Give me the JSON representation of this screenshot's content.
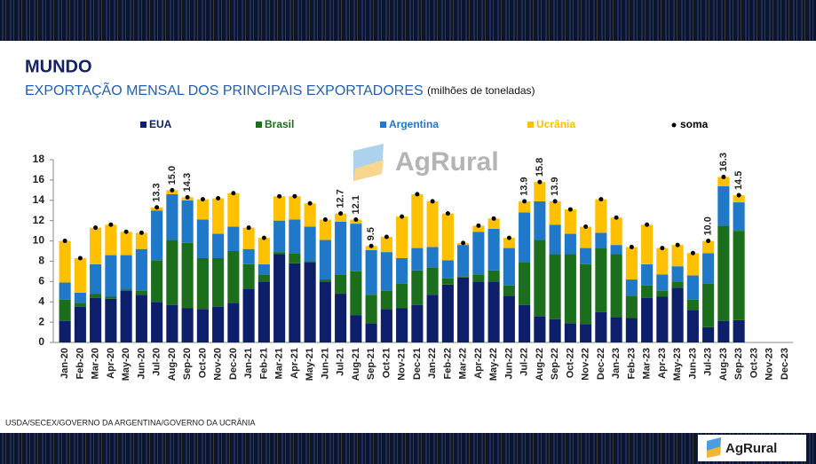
{
  "chart_data": {
    "type": "stacked_bar",
    "title": "MUNDO",
    "subtitle": "EXPORTAÇÃO MENSAL DOS PRINCIPAIS EXPORTADORES",
    "unit_note": "(milhões de toneladas)",
    "watermark": "AgRural",
    "logo": "AgRural",
    "source": "USDA/SECEX/GOVERNO DA ARGENTINA/GOVERNO DA UCRÂNIA",
    "categories": [
      "Jan-20",
      "Feb-20",
      "Mar-20",
      "Apr-20",
      "May-20",
      "Jun-20",
      "Jul-20",
      "Aug-20",
      "Sep-20",
      "Oct-20",
      "Nov-20",
      "Dec-20",
      "Jan-21",
      "Feb-21",
      "Mar-21",
      "Apr-21",
      "May-21",
      "Jun-21",
      "Jul-21",
      "Aug-21",
      "Sep-21",
      "Oct-21",
      "Nov-21",
      "Dec-21",
      "Jan-22",
      "Feb-22",
      "Mar-22",
      "Apr-22",
      "May-22",
      "Jun-22",
      "Jul-22",
      "Aug-22",
      "Sep-22",
      "Oct-22",
      "Nov-22",
      "Dec-22",
      "Jan-23",
      "Feb-23",
      "Mar-23",
      "Apr-23",
      "May-23",
      "Jun-23",
      "Jul-23",
      "Aug-23",
      "Sep-23",
      "Oct-23",
      "Nov-23",
      "Dec-23"
    ],
    "series": [
      {
        "name": "EUA",
        "color": "#0d1f6b",
        "values": [
          2.1,
          3.5,
          4.4,
          4.3,
          5.1,
          4.7,
          4.0,
          3.7,
          3.4,
          3.3,
          3.5,
          3.9,
          5.3,
          6.0,
          8.7,
          7.8,
          7.9,
          6.0,
          4.8,
          2.7,
          1.9,
          3.3,
          3.4,
          3.7,
          4.7,
          5.7,
          6.4,
          6.0,
          6.0,
          4.6,
          3.7,
          2.6,
          2.3,
          1.9,
          1.8,
          3.0,
          2.5,
          2.4,
          4.4,
          4.5,
          5.4,
          3.2,
          1.5,
          2.1,
          2.2,
          null,
          null,
          null
        ]
      },
      {
        "name": "Brasil",
        "color": "#1b6e1b",
        "values": [
          2.1,
          0.4,
          0.4,
          0.2,
          0.1,
          0.4,
          4.1,
          6.4,
          6.4,
          5.0,
          4.8,
          5.1,
          2.4,
          0.7,
          0.2,
          1.0,
          0.1,
          0.2,
          1.9,
          4.3,
          2.8,
          1.8,
          2.4,
          3.4,
          2.7,
          0.6,
          0.1,
          0.7,
          1.1,
          1.0,
          4.2,
          7.5,
          6.4,
          6.8,
          5.9,
          6.3,
          6.2,
          2.2,
          1.2,
          0.6,
          0.6,
          1.0,
          4.3,
          9.4,
          8.8,
          null,
          null,
          null
        ]
      },
      {
        "name": "Argentina",
        "color": "#1f78c8",
        "values": [
          1.7,
          1.0,
          2.9,
          4.1,
          3.4,
          4.1,
          4.9,
          4.5,
          4.2,
          3.8,
          2.4,
          2.4,
          1.5,
          1.0,
          3.1,
          3.3,
          3.4,
          3.9,
          5.2,
          4.7,
          4.4,
          3.8,
          2.5,
          2.2,
          2.0,
          1.8,
          3.1,
          4.2,
          4.1,
          3.7,
          4.9,
          3.8,
          2.9,
          2.0,
          1.6,
          1.5,
          0.9,
          1.6,
          2.1,
          1.6,
          1.5,
          2.4,
          3.0,
          3.9,
          2.8,
          null,
          null,
          null
        ]
      },
      {
        "name": "Ucrânia",
        "color": "#ffc000",
        "values": [
          4.1,
          3.4,
          3.6,
          3.0,
          2.3,
          1.6,
          0.3,
          0.4,
          0.3,
          2.0,
          3.5,
          3.3,
          2.1,
          2.6,
          2.4,
          2.3,
          2.3,
          2.0,
          0.8,
          0.4,
          0.4,
          1.5,
          4.1,
          5.3,
          4.5,
          4.6,
          0.2,
          0.6,
          1.0,
          1.0,
          1.1,
          1.9,
          2.3,
          2.4,
          2.1,
          3.3,
          2.7,
          3.2,
          3.9,
          2.6,
          2.1,
          2.2,
          1.2,
          0.9,
          0.7,
          null,
          null,
          null
        ]
      }
    ],
    "total": {
      "name": "soma",
      "color": "#000000",
      "values": [
        10.0,
        8.3,
        11.3,
        11.6,
        10.9,
        10.8,
        13.3,
        15.0,
        14.3,
        14.1,
        14.2,
        14.7,
        11.3,
        10.3,
        14.4,
        14.4,
        13.7,
        12.1,
        12.7,
        12.1,
        9.5,
        10.4,
        12.4,
        14.6,
        13.9,
        12.7,
        9.8,
        11.5,
        12.2,
        10.3,
        13.9,
        15.8,
        13.9,
        13.1,
        11.4,
        14.1,
        12.3,
        9.4,
        11.6,
        9.3,
        9.6,
        8.8,
        10.0,
        16.3,
        14.5,
        null,
        null,
        null
      ],
      "value_labels": [
        null,
        null,
        null,
        null,
        null,
        null,
        "13.3",
        "15.0",
        "14.3",
        null,
        null,
        null,
        null,
        null,
        null,
        null,
        null,
        null,
        "12.7",
        "12.1",
        "9.5",
        null,
        null,
        null,
        null,
        null,
        null,
        null,
        null,
        null,
        "13.9",
        "15.8",
        "13.9",
        null,
        null,
        null,
        null,
        null,
        null,
        null,
        null,
        null,
        "10.0",
        "16.3",
        "14.5",
        null,
        null,
        null
      ]
    },
    "ylim": [
      0,
      18
    ],
    "yticks": [
      0,
      2,
      4,
      6,
      8,
      10,
      12,
      14,
      16,
      18
    ],
    "grid": false
  }
}
